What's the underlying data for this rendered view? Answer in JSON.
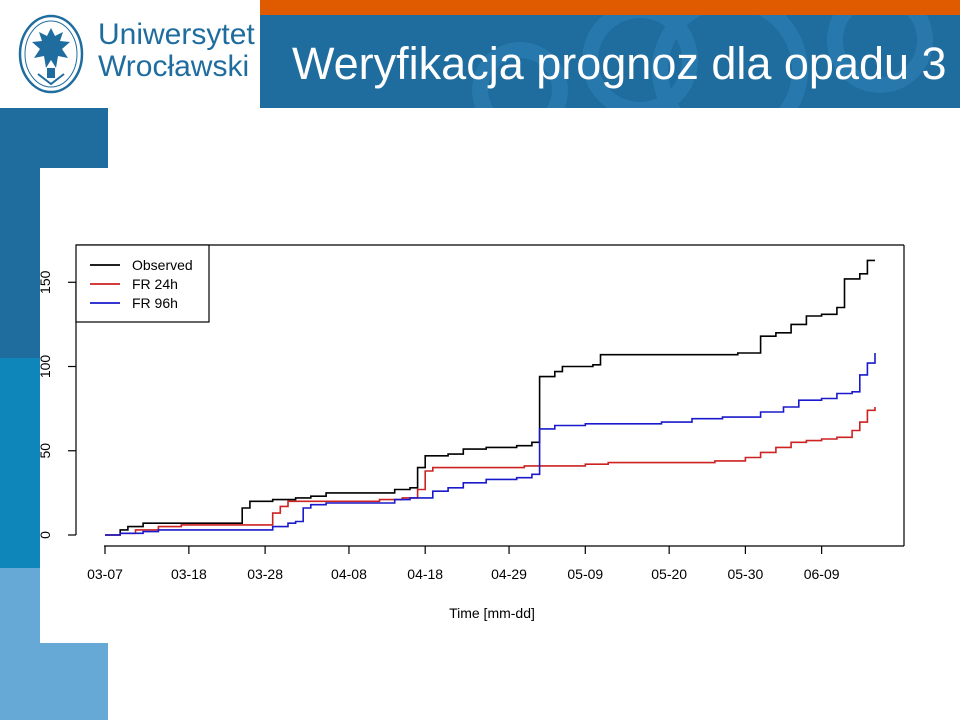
{
  "header": {
    "university_line1": "Uniwersytet",
    "university_line2": "Wrocławski",
    "slide_title": "Weryfikacja prognoz dla opadu 3"
  },
  "colors": {
    "header_blue": "#1f6c9e",
    "orange_bar": "#e05a00",
    "observed": "#000000",
    "fr24": "#cc2222",
    "fr96": "#1a1acc"
  },
  "icons": {
    "logo": "university-crest-icon"
  },
  "chart_data": {
    "type": "line",
    "xlabel": "Time [mm-dd]",
    "ylabel": "",
    "x_ticks": [
      "03-07",
      "03-18",
      "03-28",
      "04-08",
      "04-18",
      "04-29",
      "05-09",
      "05-20",
      "05-30",
      "06-09"
    ],
    "y_ticks": [
      "0",
      "50",
      "100",
      "150"
    ],
    "xlim": [
      "03-07",
      "06-16"
    ],
    "ylim": [
      0,
      165
    ],
    "legend_position": "top-left",
    "series": [
      {
        "name": "Observed",
        "color": "#000000",
        "points": [
          [
            "03-07",
            0
          ],
          [
            "03-08",
            0
          ],
          [
            "03-09",
            3
          ],
          [
            "03-10",
            5
          ],
          [
            "03-12",
            7
          ],
          [
            "03-24",
            7
          ],
          [
            "03-25",
            16
          ],
          [
            "03-26",
            20
          ],
          [
            "03-29",
            21
          ],
          [
            "04-01",
            22
          ],
          [
            "04-03",
            23
          ],
          [
            "04-05",
            25
          ],
          [
            "04-12",
            25
          ],
          [
            "04-14",
            27
          ],
          [
            "04-16",
            28
          ],
          [
            "04-17",
            40
          ],
          [
            "04-18",
            47
          ],
          [
            "04-21",
            48
          ],
          [
            "04-23",
            51
          ],
          [
            "04-26",
            52
          ],
          [
            "04-30",
            53
          ],
          [
            "05-02",
            55
          ],
          [
            "05-03",
            94
          ],
          [
            "05-05",
            97
          ],
          [
            "05-06",
            100
          ],
          [
            "05-10",
            101
          ],
          [
            "05-11",
            107
          ],
          [
            "05-20",
            107
          ],
          [
            "05-29",
            108
          ],
          [
            "05-31",
            108
          ],
          [
            "06-01",
            118
          ],
          [
            "06-03",
            120
          ],
          [
            "06-05",
            125
          ],
          [
            "06-07",
            130
          ],
          [
            "06-09",
            131
          ],
          [
            "06-11",
            135
          ],
          [
            "06-12",
            152
          ],
          [
            "06-14",
            155
          ],
          [
            "06-15",
            163
          ],
          [
            "06-16",
            163
          ]
        ]
      },
      {
        "name": "FR 24h",
        "color": "#cc2222",
        "points": [
          [
            "03-07",
            0
          ],
          [
            "03-09",
            1
          ],
          [
            "03-11",
            3
          ],
          [
            "03-14",
            5
          ],
          [
            "03-17",
            6
          ],
          [
            "03-28",
            6
          ],
          [
            "03-29",
            13
          ],
          [
            "03-30",
            17
          ],
          [
            "03-31",
            20
          ],
          [
            "04-06",
            20
          ],
          [
            "04-12",
            21
          ],
          [
            "04-15",
            22
          ],
          [
            "04-17",
            27
          ],
          [
            "04-18",
            38
          ],
          [
            "04-19",
            40
          ],
          [
            "04-26",
            40
          ],
          [
            "05-01",
            41
          ],
          [
            "05-03",
            41
          ],
          [
            "05-09",
            42
          ],
          [
            "05-12",
            43
          ],
          [
            "05-18",
            43
          ],
          [
            "05-26",
            44
          ],
          [
            "05-30",
            46
          ],
          [
            "06-01",
            49
          ],
          [
            "06-03",
            52
          ],
          [
            "06-05",
            55
          ],
          [
            "06-07",
            56
          ],
          [
            "06-09",
            57
          ],
          [
            "06-11",
            58
          ],
          [
            "06-13",
            62
          ],
          [
            "06-14",
            67
          ],
          [
            "06-15",
            74
          ],
          [
            "06-16",
            76
          ]
        ]
      },
      {
        "name": "FR 96h",
        "color": "#1a1acc",
        "points": [
          [
            "03-07",
            0
          ],
          [
            "03-09",
            1
          ],
          [
            "03-12",
            2
          ],
          [
            "03-14",
            3
          ],
          [
            "03-28",
            3
          ],
          [
            "03-29",
            5
          ],
          [
            "03-31",
            7
          ],
          [
            "04-01",
            8
          ],
          [
            "04-02",
            16
          ],
          [
            "04-03",
            18
          ],
          [
            "04-05",
            19
          ],
          [
            "04-12",
            19
          ],
          [
            "04-14",
            21
          ],
          [
            "04-16",
            22
          ],
          [
            "04-19",
            26
          ],
          [
            "04-21",
            28
          ],
          [
            "04-23",
            31
          ],
          [
            "04-26",
            33
          ],
          [
            "04-30",
            34
          ],
          [
            "05-02",
            36
          ],
          [
            "05-03",
            63
          ],
          [
            "05-05",
            65
          ],
          [
            "05-09",
            66
          ],
          [
            "05-19",
            67
          ],
          [
            "05-23",
            69
          ],
          [
            "05-27",
            70
          ],
          [
            "05-30",
            70
          ],
          [
            "06-01",
            73
          ],
          [
            "06-04",
            76
          ],
          [
            "06-06",
            80
          ],
          [
            "06-09",
            81
          ],
          [
            "06-11",
            84
          ],
          [
            "06-13",
            85
          ],
          [
            "06-14",
            95
          ],
          [
            "06-15",
            102
          ],
          [
            "06-16",
            108
          ]
        ]
      }
    ]
  }
}
